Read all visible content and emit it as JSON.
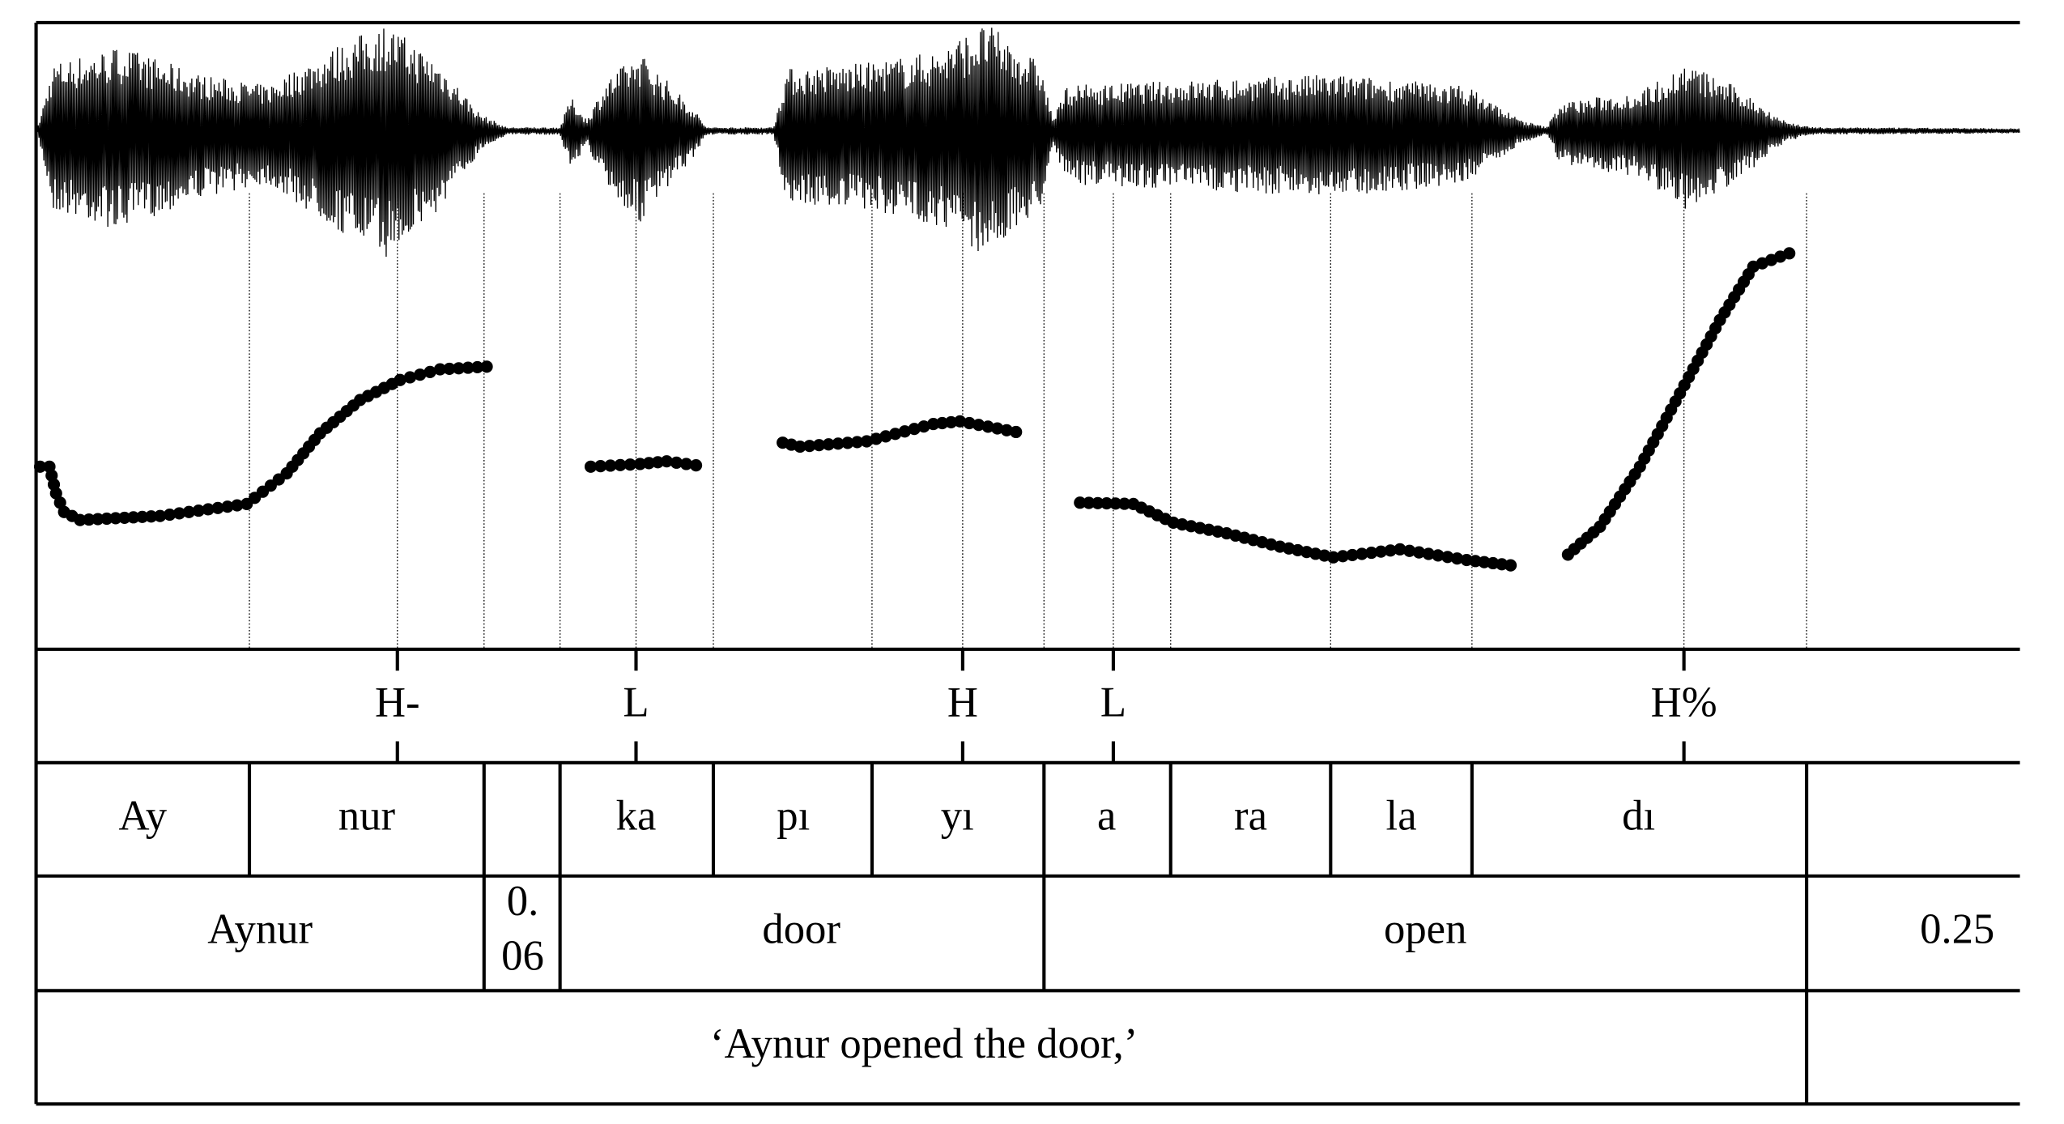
{
  "tones": [
    "H-",
    "L",
    "H",
    "L",
    "H%"
  ],
  "syllables": [
    "Ay",
    "nur",
    "ka",
    "pı",
    "yı",
    "a",
    "ra",
    "la",
    "dı"
  ],
  "words": [
    "Aynur",
    "door",
    "open"
  ],
  "pause": [
    "0.",
    "06"
  ],
  "final_pause": "0.25",
  "translation": "‘Aynur opened the door,’"
}
